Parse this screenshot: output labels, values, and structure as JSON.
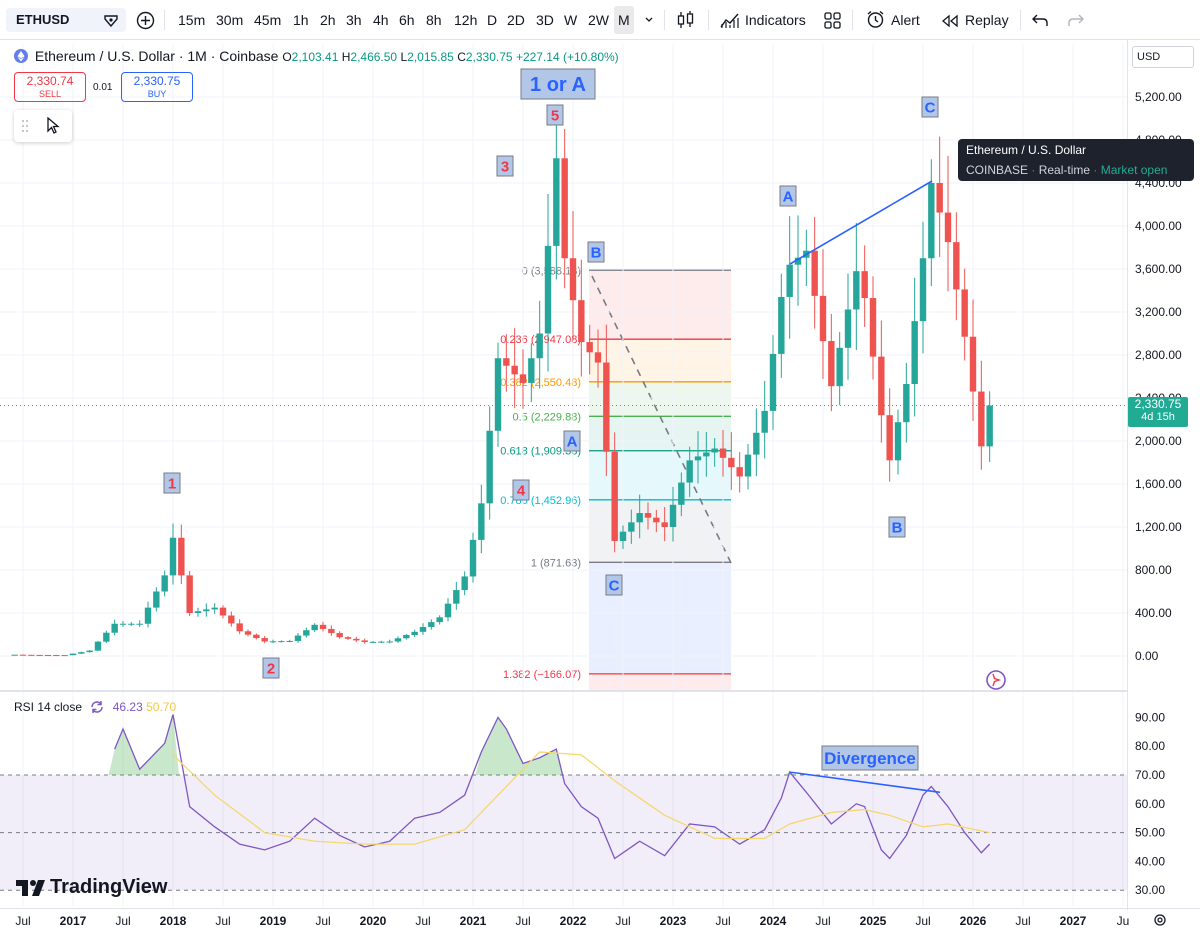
{
  "toolbar": {
    "symbol": "ETHUSD",
    "intervals": [
      "15m",
      "30m",
      "45m",
      "1h",
      "2h",
      "3h",
      "4h",
      "6h",
      "8h",
      "12h",
      "D",
      "2D",
      "3D",
      "W",
      "2W",
      "M"
    ],
    "active_interval": "M",
    "indicators_label": "Indicators",
    "alert_label": "Alert",
    "replay_label": "Replay"
  },
  "header": {
    "title": "Ethereum / U.S. Dollar · 1M · Coinbase",
    "open": "2,103.41",
    "high": "2,466.50",
    "low": "2,015.85",
    "close": "2,330.75",
    "change": "+227.14 (+10.80%)",
    "sell_price": "2,330.74",
    "sell_label": "SELL",
    "buy_price": "2,330.75",
    "buy_label": "BUY",
    "spread": "0.01",
    "currency": "USD"
  },
  "tooltip": {
    "title": "Ethereum / U.S. Dollar",
    "exchange": "COINBASE",
    "realtime": "Real-time",
    "status": "Market open"
  },
  "price_tag": {
    "price": "2,330.75",
    "countdown": "4d 15h"
  },
  "rsi_legend": {
    "name": "RSI 14 close",
    "value1": "46.23",
    "value2": "50.70"
  },
  "logo": "TradingView",
  "colors": {
    "up": "#26a69a",
    "down": "#ef5350",
    "rsi_line": "#7e57c2",
    "rsi_ma": "#f5d76e",
    "annotation_box": "#b2c7e8"
  },
  "chart_data": [
    {
      "type": "line",
      "title": "Ethereum / U.S. Dollar · 1M · Coinbase",
      "note": "monthly candles, approximate closes",
      "y_ticks": [
        "5,200.00",
        "4,800.00",
        "4,400.00",
        "4,000.00",
        "3,600.00",
        "3,200.00",
        "2,800.00",
        "2,400.00",
        "2,000.00",
        "1,600.00",
        "1,200.00",
        "800.00",
        "400.00",
        "0.00"
      ],
      "x_ticks": [
        "Jul",
        "2017",
        "Jul",
        "2018",
        "Jul",
        "2019",
        "Jul",
        "2020",
        "Jul",
        "2021",
        "Jul",
        "2022",
        "Jul",
        "2023",
        "Jul",
        "2024",
        "Jul",
        "2025",
        "Jul",
        "2026",
        "Jul",
        "2027",
        "Ju"
      ],
      "ylim": [
        -300,
        5500
      ],
      "series": [
        {
          "x": [
            "2016-06",
            "2016-09",
            "2016-12",
            "2017-03",
            "2017-06",
            "2017-09",
            "2017-12",
            "2018-01",
            "2018-03",
            "2018-06",
            "2018-09",
            "2018-12",
            "2019-03",
            "2019-06",
            "2019-09",
            "2019-12",
            "2020-03",
            "2020-06",
            "2020-09",
            "2020-12",
            "2021-02",
            "2021-04",
            "2021-05",
            "2021-07",
            "2021-09",
            "2021-11",
            "2021-12",
            "2022-02",
            "2022-04",
            "2022-06",
            "2022-09",
            "2022-12",
            "2023-03",
            "2023-06",
            "2023-09",
            "2023-12",
            "2024-02",
            "2024-03",
            "2024-05",
            "2024-08",
            "2024-11",
            "2024-12",
            "2025-02",
            "2025-03",
            "2025-05",
            "2025-07",
            "2025-08",
            "2025-10",
            "2025-12",
            "2026-02",
            "2026-03"
          ],
          "values": [
            12,
            9,
            8,
            50,
            300,
            300,
            750,
            1100,
            400,
            450,
            230,
            135,
            140,
            290,
            175,
            130,
            135,
            225,
            360,
            740,
            1420,
            2770,
            2700,
            2540,
            3000,
            4630,
            3700,
            2920,
            2730,
            1070,
            1330,
            1200,
            1820,
            1930,
            1670,
            2280,
            3340,
            3640,
            3770,
            2510,
            3580,
            3330,
            2240,
            1820,
            2530,
            3700,
            4400,
            3850,
            2970,
            1950,
            2330
          ]
        }
      ],
      "fibonacci": [
        {
          "level": "0",
          "price": "3,588.13"
        },
        {
          "level": "0.236",
          "price": "2,947.08"
        },
        {
          "level": "0.382",
          "price": "2,550.48"
        },
        {
          "level": "0.5",
          "price": "2,229.88"
        },
        {
          "level": "0.618",
          "price": "1,909.33"
        },
        {
          "level": "0.786",
          "price": "1,452.96"
        },
        {
          "level": "1",
          "price": "871.63"
        },
        {
          "level": "1.382",
          "price": "−166.07"
        }
      ],
      "wave_labels": [
        "1",
        "2",
        "3",
        "4",
        "5",
        "1 or A",
        "A",
        "B",
        "C",
        "A",
        "B",
        "C"
      ]
    },
    {
      "type": "line",
      "title": "RSI 14 close",
      "y_ticks": [
        "90.00",
        "80.00",
        "70.00",
        "60.00",
        "50.00",
        "40.00",
        "30.00"
      ],
      "ylim": [
        26,
        94
      ],
      "annotation": "Divergence",
      "series": [
        {
          "x": [
            "2017-06",
            "2017-07",
            "2017-09",
            "2017-12",
            "2018-01",
            "2018-03",
            "2018-06",
            "2018-09",
            "2018-12",
            "2019-03",
            "2019-06",
            "2019-09",
            "2019-12",
            "2020-03",
            "2020-06",
            "2020-09",
            "2020-12",
            "2021-02",
            "2021-04",
            "2021-05",
            "2021-07",
            "2021-09",
            "2021-11",
            "2021-12",
            "2022-02",
            "2022-04",
            "2022-06",
            "2022-09",
            "2022-12",
            "2023-03",
            "2023-06",
            "2023-09",
            "2023-12",
            "2024-02",
            "2024-03",
            "2024-05",
            "2024-08",
            "2024-11",
            "2024-12",
            "2025-02",
            "2025-03",
            "2025-05",
            "2025-07",
            "2025-08",
            "2025-10",
            "2025-12",
            "2026-02",
            "2026-03"
          ],
          "values": [
            79,
            86,
            72,
            81,
            91,
            59,
            52,
            46,
            44,
            47,
            55,
            49,
            45,
            47,
            55,
            57,
            63,
            78,
            90,
            86,
            74,
            76,
            79,
            67,
            59,
            55,
            41,
            47,
            42,
            53,
            52,
            46,
            51,
            62,
            71,
            64,
            53,
            60,
            59,
            44,
            41,
            49,
            63,
            66,
            59,
            50,
            43,
            46
          ]
        },
        {
          "x": [
            "2018-01",
            "2018-06",
            "2018-12",
            "2019-06",
            "2019-12",
            "2020-06",
            "2020-12",
            "2021-04",
            "2021-09",
            "2022-02",
            "2022-06",
            "2022-12",
            "2023-06",
            "2023-12",
            "2024-03",
            "2024-08",
            "2024-12",
            "2025-03",
            "2025-07",
            "2025-10",
            "2026-03"
          ],
          "values": [
            77,
            63,
            50,
            47,
            46,
            46,
            51,
            63,
            78,
            77,
            68,
            56,
            48,
            48,
            53,
            57,
            58,
            56,
            52,
            53,
            50
          ]
        }
      ]
    }
  ]
}
